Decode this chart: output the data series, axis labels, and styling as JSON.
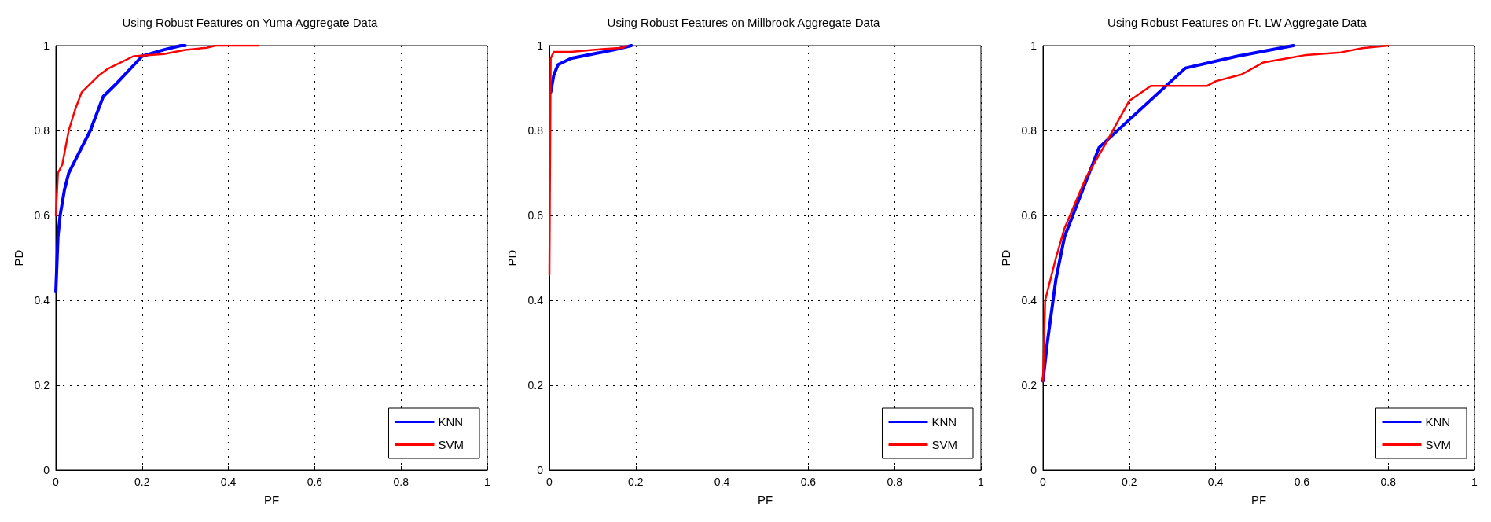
{
  "chart_data": [
    {
      "type": "line",
      "title": "Using Robust Features on Yuma Aggregate Data",
      "xlabel": "PF",
      "ylabel": "PD",
      "xlim": [
        0,
        1
      ],
      "ylim": [
        0,
        1
      ],
      "xticks": [
        0,
        0.2,
        0.4,
        0.6,
        0.8,
        1
      ],
      "yticks": [
        0,
        0.2,
        0.4,
        0.6,
        0.8,
        1
      ],
      "grid": true,
      "legend": "bottom right",
      "marker": "none",
      "line_style": "solid",
      "series": [
        {
          "name": "KNN",
          "color": "#0000ff",
          "x": [
            0,
            0.005,
            0.01,
            0.02,
            0.03,
            0.05,
            0.08,
            0.11,
            0.14,
            0.2,
            0.25,
            0.29,
            0.3
          ],
          "values": [
            0.42,
            0.55,
            0.6,
            0.66,
            0.7,
            0.74,
            0.8,
            0.88,
            0.91,
            0.975,
            0.99,
            1,
            1
          ]
        },
        {
          "name": "SVM",
          "color": "#ff0000",
          "x": [
            0,
            0.005,
            0.015,
            0.03,
            0.045,
            0.06,
            0.08,
            0.1,
            0.12,
            0.18,
            0.25,
            0.3,
            0.35,
            0.37,
            0.47
          ],
          "values": [
            0.6,
            0.7,
            0.72,
            0.8,
            0.85,
            0.89,
            0.91,
            0.93,
            0.945,
            0.975,
            0.98,
            0.99,
            0.995,
            1,
            1
          ]
        }
      ]
    },
    {
      "type": "line",
      "title": "Using Robust Features on Millbrook Aggregate Data",
      "xlabel": "PF",
      "ylabel": "PD",
      "xlim": [
        0,
        1
      ],
      "ylim": [
        0,
        1
      ],
      "xticks": [
        0,
        0.2,
        0.4,
        0.6,
        0.8,
        1
      ],
      "yticks": [
        0,
        0.2,
        0.4,
        0.6,
        0.8,
        1
      ],
      "grid": true,
      "legend": "bottom right",
      "marker": "none",
      "line_style": "solid",
      "series": [
        {
          "name": "KNN",
          "color": "#0000ff",
          "x": [
            0.003,
            0.01,
            0.02,
            0.05,
            0.1,
            0.15,
            0.19
          ],
          "values": [
            0.89,
            0.93,
            0.955,
            0.97,
            0.98,
            0.99,
            1
          ]
        },
        {
          "name": "SVM",
          "color": "#ff0000",
          "x": [
            0,
            0.003,
            0.01,
            0.05,
            0.1,
            0.17,
            0.18
          ],
          "values": [
            0.46,
            0.97,
            0.985,
            0.985,
            0.99,
            0.995,
            1
          ]
        }
      ]
    },
    {
      "type": "line",
      "title": "Using Robust Features on Ft. LW Aggregate Data",
      "xlabel": "PF",
      "ylabel": "PD",
      "xlim": [
        0,
        1
      ],
      "ylim": [
        0,
        1
      ],
      "xticks": [
        0,
        0.2,
        0.4,
        0.6,
        0.8,
        1
      ],
      "yticks": [
        0,
        0.2,
        0.4,
        0.6,
        0.8,
        1
      ],
      "grid": true,
      "legend": "bottom right",
      "marker": "none",
      "line_style": "solid",
      "series": [
        {
          "name": "KNN",
          "color": "#0000ff",
          "x": [
            0,
            0.01,
            0.03,
            0.05,
            0.13,
            0.33,
            0.45,
            0.58
          ],
          "values": [
            0.21,
            0.3,
            0.45,
            0.55,
            0.76,
            0.947,
            0.975,
            1
          ]
        },
        {
          "name": "SVM",
          "color": "#ff0000",
          "x": [
            0,
            0.005,
            0.03,
            0.05,
            0.1,
            0.14,
            0.2,
            0.25,
            0.38,
            0.4,
            0.46,
            0.51,
            0.56,
            0.61,
            0.69,
            0.74,
            0.8
          ],
          "values": [
            0.21,
            0.4,
            0.5,
            0.57,
            0.69,
            0.76,
            0.87,
            0.905,
            0.905,
            0.916,
            0.932,
            0.96,
            0.969,
            0.978,
            0.984,
            0.994,
            1
          ]
        }
      ]
    }
  ]
}
